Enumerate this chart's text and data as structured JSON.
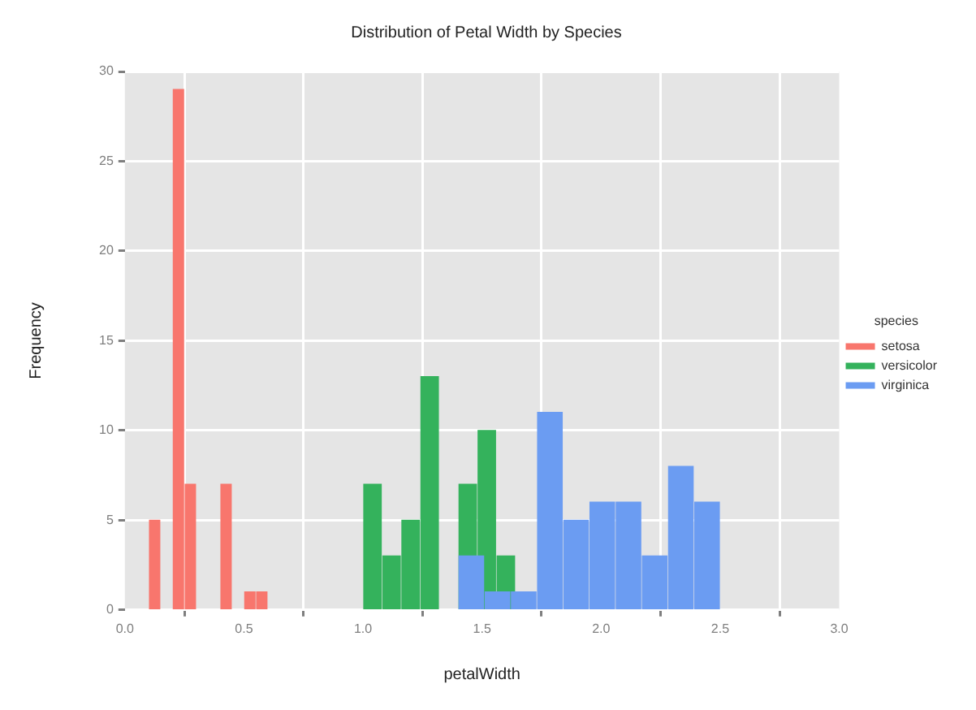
{
  "chart_data": {
    "type": "bar",
    "title": "Distribution of Petal Width by Species",
    "xlabel": "petalWidth",
    "ylabel": "Frequency",
    "legend_title": "species",
    "legend": "right",
    "grid": true,
    "xlim": [
      0,
      3
    ],
    "xticks": [
      {
        "value": 0,
        "label": "0.0"
      },
      {
        "value": 0.5,
        "label": "0.5"
      },
      {
        "value": 1,
        "label": "1.0"
      },
      {
        "value": 1.5,
        "label": "1.5"
      },
      {
        "value": 2,
        "label": "2.0"
      },
      {
        "value": 2.5,
        "label": "2.5"
      },
      {
        "value": 3,
        "label": "3.0"
      }
    ],
    "ylim": [
      0,
      30
    ],
    "yticks": [
      0,
      5,
      10,
      15,
      20,
      25,
      30
    ],
    "series": [
      {
        "name": "setosa",
        "color": "#f8766d",
        "x": [
          0.125,
          0.225,
          0.275,
          0.425,
          0.525,
          0.575
        ],
        "values": [
          5,
          29,
          7,
          7,
          1,
          1
        ]
      },
      {
        "name": "versicolor",
        "color": "#34b25c",
        "x": [
          1.04,
          1.12,
          1.2,
          1.28,
          1.44,
          1.52,
          1.6
        ],
        "values": [
          7,
          3,
          5,
          13,
          7,
          10,
          3
        ]
      },
      {
        "name": "virginica",
        "color": "#6b9cf2",
        "x": [
          1.455,
          1.565,
          1.675,
          1.785,
          1.895,
          2.005,
          2.115,
          2.225,
          2.335,
          2.445
        ],
        "values": [
          3,
          1,
          1,
          11,
          5,
          6,
          6,
          3,
          8,
          6
        ]
      }
    ]
  }
}
